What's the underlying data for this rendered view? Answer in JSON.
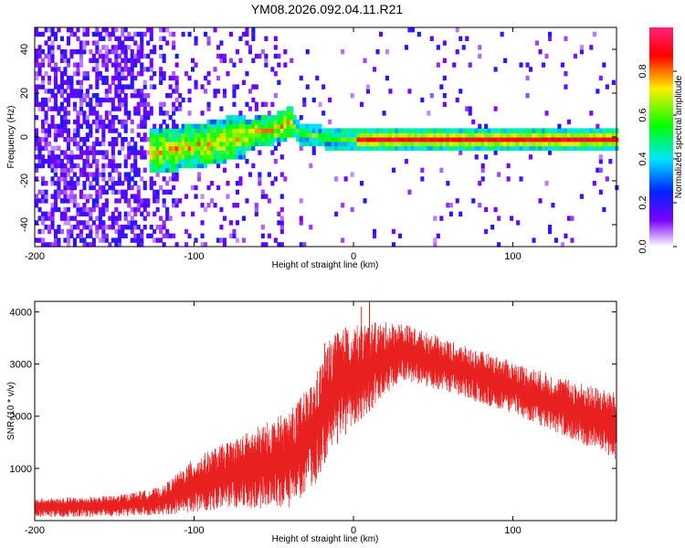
{
  "title": "YM08.2026.092.04.11.R21",
  "chart_data": [
    {
      "type": "heatmap",
      "xlabel": "Height of straight line (km)",
      "ylabel": "Frequency (Hz)",
      "xlim": [
        -200,
        165
      ],
      "ylim": [
        -50,
        50
      ],
      "xticks": [
        "-200",
        "-100",
        "0",
        "100"
      ],
      "yticks": [
        "-40",
        "-20",
        "0",
        "20",
        "40"
      ],
      "colorbar": {
        "label": "Normalized spectral amplitude",
        "range": [
          0,
          1
        ],
        "ticks": [
          "0.0",
          "0.2",
          "0.4",
          "0.6",
          "0.8"
        ],
        "colors": [
          "#ffffff",
          "#7b00ff",
          "#0022ff",
          "#00e5ff",
          "#00ff00",
          "#ffee00",
          "#ff0000",
          "#ff2277"
        ]
      },
      "ridge": [
        {
          "x": -130,
          "y": -8
        },
        {
          "x": -100,
          "y": -5
        },
        {
          "x": -75,
          "y": -1
        },
        {
          "x": -50,
          "y": 3
        },
        {
          "x": -40,
          "y": 6
        },
        {
          "x": -35,
          "y": 1
        },
        {
          "x": -20,
          "y": -1
        },
        {
          "x": 0,
          "y": -2
        },
        {
          "x": 50,
          "y": -2
        },
        {
          "x": 110,
          "y": -2
        },
        {
          "x": 165,
          "y": -2
        }
      ]
    },
    {
      "type": "line",
      "xlabel": "Height of straight line (km)",
      "ylabel": "SNR (10 * v/v)",
      "xlim": [
        -200,
        165
      ],
      "ylim": [
        0,
        4200
      ],
      "xticks": [
        "-200",
        "-100",
        "0",
        "100"
      ],
      "yticks": [
        "1000",
        "2000",
        "3000",
        "4000"
      ],
      "color": "#e82020",
      "envelope": [
        {
          "x": -200,
          "low": 60,
          "high": 420
        },
        {
          "x": -150,
          "low": 80,
          "high": 480
        },
        {
          "x": -120,
          "low": 110,
          "high": 650
        },
        {
          "x": -100,
          "low": 160,
          "high": 1200
        },
        {
          "x": -80,
          "low": 220,
          "high": 1500
        },
        {
          "x": -60,
          "low": 220,
          "high": 1800
        },
        {
          "x": -40,
          "low": 250,
          "high": 2100
        },
        {
          "x": -25,
          "low": 650,
          "high": 2700
        },
        {
          "x": -15,
          "low": 1300,
          "high": 3500
        },
        {
          "x": -5,
          "low": 1650,
          "high": 3700
        },
        {
          "x": 10,
          "low": 2100,
          "high": 3800
        },
        {
          "x": 30,
          "low": 2700,
          "high": 3800
        },
        {
          "x": 60,
          "low": 2450,
          "high": 3450
        },
        {
          "x": 100,
          "low": 2050,
          "high": 3050
        },
        {
          "x": 130,
          "low": 1650,
          "high": 2750
        },
        {
          "x": 165,
          "low": 1150,
          "high": 2450
        }
      ]
    }
  ]
}
